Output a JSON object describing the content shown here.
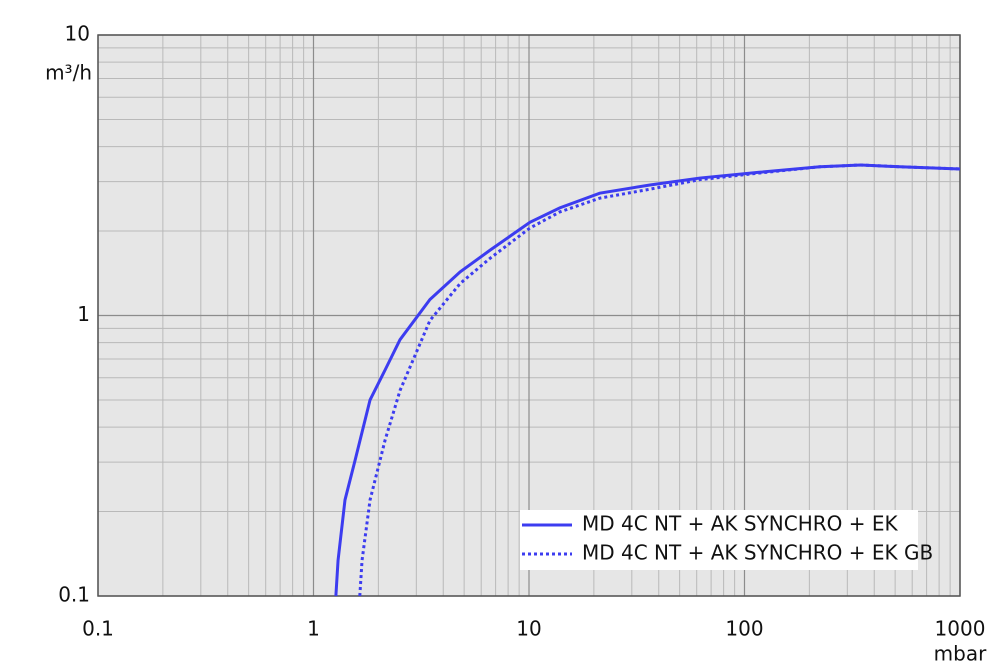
{
  "chart_data": {
    "type": "line",
    "x_label": "mbar",
    "y_label": "m³/h",
    "xlim": [
      0.1,
      1000
    ],
    "ylim": [
      0.1,
      10
    ],
    "xticks": [
      0.1,
      1,
      10,
      100,
      1000
    ],
    "yticks": [
      0.1,
      1,
      10
    ],
    "xscale": "log",
    "yscale": "log",
    "grid": true,
    "minor_grid": true,
    "legend": "lower right",
    "series": [
      {
        "name": "MD 4C NT + AK SYNCHRO + EK",
        "color": "#3c3cf0",
        "style": "solid",
        "x": [
          1.27,
          1.3,
          1.4,
          1.56,
          1.83,
          2.15,
          2.52,
          3.47,
          4.79,
          6.6,
          10.1,
          13.9,
          21.3,
          36.4,
          62,
          117,
          224,
          347,
          526,
          1000
        ],
        "values": [
          0.1,
          0.134,
          0.22,
          0.305,
          0.5,
          0.64,
          0.82,
          1.14,
          1.43,
          1.71,
          2.15,
          2.42,
          2.73,
          2.92,
          3.09,
          3.24,
          3.39,
          3.44,
          3.39,
          3.33
        ]
      },
      {
        "name": "MD 4C NT + AK SYNCHRO + EK GB",
        "color": "#3c3cf0",
        "style": "dotted",
        "x": [
          1.64,
          1.68,
          1.83,
          2.15,
          2.52,
          3.47,
          4.79,
          6.6,
          10.1,
          13.9,
          21.3,
          36.4,
          62,
          117,
          224,
          347,
          526,
          1000
        ],
        "values": [
          0.1,
          0.134,
          0.22,
          0.36,
          0.54,
          0.96,
          1.3,
          1.6,
          2.05,
          2.34,
          2.62,
          2.82,
          3.05,
          3.22,
          3.39,
          3.44,
          3.39,
          3.33
        ]
      }
    ]
  }
}
